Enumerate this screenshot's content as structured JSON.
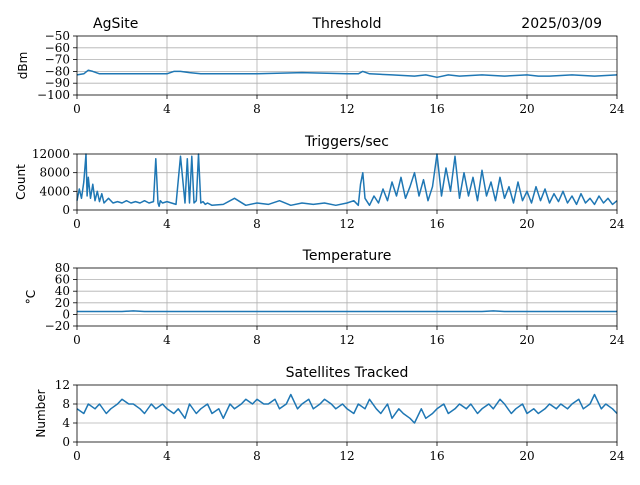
{
  "header": {
    "site": "AgSite",
    "date": "2025/03/09"
  },
  "colors": {
    "series": "#1f77b4",
    "grid": "#b0b0b0",
    "axis": "#000000"
  },
  "chart_data": [
    {
      "type": "line",
      "title": "Threshold",
      "xlabel": "",
      "ylabel": "dBm",
      "xlim": [
        0,
        24
      ],
      "ylim": [
        -100,
        -50
      ],
      "xticks": [
        0,
        4,
        8,
        12,
        16,
        20,
        24
      ],
      "xtick_labels": [
        "0",
        "4",
        "8",
        "12",
        "16",
        "20",
        "24"
      ],
      "yticks": [
        -100,
        -90,
        -80,
        -70,
        -60,
        -50
      ],
      "ytick_labels": [
        "−100",
        "−90",
        "−80",
        "−70",
        "−60",
        "−50"
      ],
      "grid": true,
      "series": [
        {
          "x": [
            0,
            0.3,
            0.5,
            0.7,
            1.0,
            2,
            3,
            4,
            4.3,
            4.6,
            5,
            5.5,
            6,
            8,
            10,
            12,
            12.5,
            12.7,
            13,
            14,
            15,
            15.5,
            16,
            16.5,
            17,
            18,
            19,
            20,
            20.5,
            21,
            22,
            23,
            24
          ],
          "y": [
            -83,
            -82,
            -79,
            -80,
            -82,
            -82,
            -82,
            -82,
            -80,
            -80,
            -81,
            -82,
            -82,
            -82,
            -81,
            -82,
            -82,
            -80,
            -82,
            -83,
            -84,
            -83,
            -85,
            -83,
            -84,
            -83,
            -84,
            -83,
            -84,
            -84,
            -83,
            -84,
            -83
          ]
        }
      ]
    },
    {
      "type": "line",
      "title": "Triggers/sec",
      "xlabel": "",
      "ylabel": "Count",
      "xlim": [
        0,
        24
      ],
      "ylim": [
        0,
        12000
      ],
      "xticks": [
        0,
        4,
        8,
        12,
        16,
        20,
        24
      ],
      "xtick_labels": [
        "0",
        "4",
        "8",
        "12",
        "16",
        "20",
        "24"
      ],
      "yticks": [
        0,
        4000,
        8000,
        12000
      ],
      "ytick_labels": [
        "0",
        "4000",
        "8000",
        "12000"
      ],
      "grid": true,
      "series": [
        {
          "x": [
            0,
            0.1,
            0.2,
            0.3,
            0.4,
            0.45,
            0.5,
            0.6,
            0.7,
            0.8,
            0.9,
            1.0,
            1.1,
            1.2,
            1.4,
            1.6,
            1.8,
            2.0,
            2.2,
            2.4,
            2.6,
            2.8,
            3.0,
            3.2,
            3.4,
            3.5,
            3.6,
            3.65,
            3.7,
            3.8,
            4.0,
            4.2,
            4.4,
            4.6,
            4.8,
            4.9,
            5.0,
            5.1,
            5.2,
            5.3,
            5.4,
            5.5,
            5.6,
            5.7,
            5.8,
            6.0,
            6.5,
            7.0,
            7.5,
            8.0,
            8.5,
            9.0,
            9.5,
            10.0,
            10.5,
            11.0,
            11.5,
            12.0,
            12.3,
            12.5,
            12.6,
            12.7,
            12.8,
            13.0,
            13.2,
            13.4,
            13.6,
            13.8,
            14.0,
            14.2,
            14.4,
            14.6,
            14.8,
            15.0,
            15.2,
            15.4,
            15.6,
            15.8,
            16.0,
            16.2,
            16.4,
            16.6,
            16.8,
            17.0,
            17.2,
            17.4,
            17.6,
            17.8,
            18.0,
            18.2,
            18.4,
            18.6,
            18.8,
            19.0,
            19.2,
            19.4,
            19.6,
            19.8,
            20.0,
            20.2,
            20.4,
            20.6,
            20.8,
            21.0,
            21.2,
            21.4,
            21.6,
            21.8,
            22.0,
            22.2,
            22.4,
            22.6,
            22.8,
            23.0,
            23.2,
            23.4,
            23.6,
            23.8,
            24.0
          ],
          "y": [
            2000,
            4500,
            2500,
            6000,
            12000,
            3000,
            7000,
            2500,
            5500,
            2000,
            4000,
            1800,
            3500,
            1500,
            2500,
            1500,
            1800,
            1500,
            2000,
            1500,
            1800,
            1500,
            2000,
            1500,
            1800,
            11000,
            1500,
            800,
            2000,
            1500,
            1800,
            1500,
            1200,
            11500,
            1500,
            11000,
            1500,
            11500,
            1500,
            2000,
            12000,
            1500,
            1800,
            1200,
            1500,
            1000,
            1200,
            2500,
            1000,
            1500,
            1200,
            2000,
            1000,
            1500,
            1200,
            1500,
            1000,
            1500,
            2000,
            1000,
            5500,
            8000,
            2500,
            1000,
            3000,
            1500,
            4500,
            2000,
            6000,
            3000,
            7000,
            2500,
            5000,
            8000,
            3000,
            6500,
            2000,
            5000,
            12000,
            3000,
            9000,
            4000,
            11500,
            2500,
            8000,
            3000,
            7000,
            2000,
            8500,
            3000,
            6000,
            2000,
            7000,
            2500,
            5000,
            1500,
            6000,
            2000,
            4000,
            1500,
            5000,
            2000,
            4500,
            1500,
            3500,
            1800,
            4000,
            1500,
            3000,
            1200,
            3500,
            1500,
            2500,
            1200,
            3000,
            1500,
            2500,
            1200,
            2000
          ]
        }
      ]
    },
    {
      "type": "line",
      "title": "Temperature",
      "xlabel": "",
      "ylabel": "°C",
      "xlim": [
        0,
        24
      ],
      "ylim": [
        -20,
        80
      ],
      "xticks": [
        0,
        4,
        8,
        12,
        16,
        20,
        24
      ],
      "xtick_labels": [
        "0",
        "4",
        "8",
        "12",
        "16",
        "20",
        "24"
      ],
      "yticks": [
        -20,
        0,
        20,
        40,
        60,
        80
      ],
      "ytick_labels": [
        "−20",
        "0",
        "20",
        "40",
        "60",
        "80"
      ],
      "grid": true,
      "series": [
        {
          "x": [
            0,
            2,
            2.5,
            3,
            4,
            8,
            12,
            16,
            18,
            18.5,
            19,
            20,
            24
          ],
          "y": [
            5,
            5,
            6,
            5,
            5,
            5,
            5,
            5,
            5,
            6,
            5,
            5,
            5
          ]
        }
      ]
    },
    {
      "type": "line",
      "title": "Satellites Tracked",
      "xlabel": "",
      "ylabel": "Number",
      "xlim": [
        0,
        24
      ],
      "ylim": [
        0,
        12
      ],
      "xticks": [
        0,
        4,
        8,
        12,
        16,
        20,
        24
      ],
      "xtick_labels": [
        "0",
        "4",
        "8",
        "12",
        "16",
        "20",
        "24"
      ],
      "yticks": [
        0,
        4,
        8,
        12
      ],
      "ytick_labels": [
        "0",
        "4",
        "8",
        "12"
      ],
      "grid": true,
      "series": [
        {
          "x": [
            0,
            0.3,
            0.5,
            0.8,
            1.0,
            1.3,
            1.5,
            1.8,
            2.0,
            2.3,
            2.5,
            2.8,
            3.0,
            3.3,
            3.5,
            3.8,
            4.0,
            4.3,
            4.5,
            4.8,
            5.0,
            5.3,
            5.5,
            5.8,
            6.0,
            6.3,
            6.5,
            6.8,
            7.0,
            7.3,
            7.5,
            7.8,
            8.0,
            8.3,
            8.5,
            8.8,
            9.0,
            9.3,
            9.5,
            9.8,
            10.0,
            10.3,
            10.5,
            10.8,
            11.0,
            11.3,
            11.5,
            11.8,
            12.0,
            12.3,
            12.5,
            12.8,
            13.0,
            13.3,
            13.5,
            13.8,
            14.0,
            14.3,
            14.5,
            14.8,
            15.0,
            15.3,
            15.5,
            15.8,
            16.0,
            16.3,
            16.5,
            16.8,
            17.0,
            17.3,
            17.5,
            17.8,
            18.0,
            18.3,
            18.5,
            18.8,
            19.0,
            19.3,
            19.5,
            19.8,
            20.0,
            20.3,
            20.5,
            20.8,
            21.0,
            21.3,
            21.5,
            21.8,
            22.0,
            22.3,
            22.5,
            22.8,
            23.0,
            23.3,
            23.5,
            23.8,
            24.0
          ],
          "y": [
            7,
            6,
            8,
            7,
            8,
            6,
            7,
            8,
            9,
            8,
            8,
            7,
            6,
            8,
            7,
            8,
            7,
            6,
            7,
            5,
            8,
            6,
            7,
            8,
            6,
            7,
            5,
            8,
            7,
            8,
            9,
            8,
            9,
            8,
            8,
            9,
            7,
            8,
            10,
            7,
            8,
            9,
            7,
            8,
            9,
            8,
            7,
            8,
            7,
            6,
            8,
            7,
            9,
            7,
            6,
            8,
            5,
            7,
            6,
            5,
            4,
            7,
            5,
            6,
            7,
            8,
            6,
            7,
            8,
            7,
            8,
            6,
            7,
            8,
            7,
            9,
            8,
            6,
            7,
            8,
            6,
            7,
            6,
            7,
            8,
            7,
            8,
            7,
            8,
            9,
            7,
            8,
            10,
            7,
            8,
            7,
            6
          ]
        }
      ]
    }
  ]
}
